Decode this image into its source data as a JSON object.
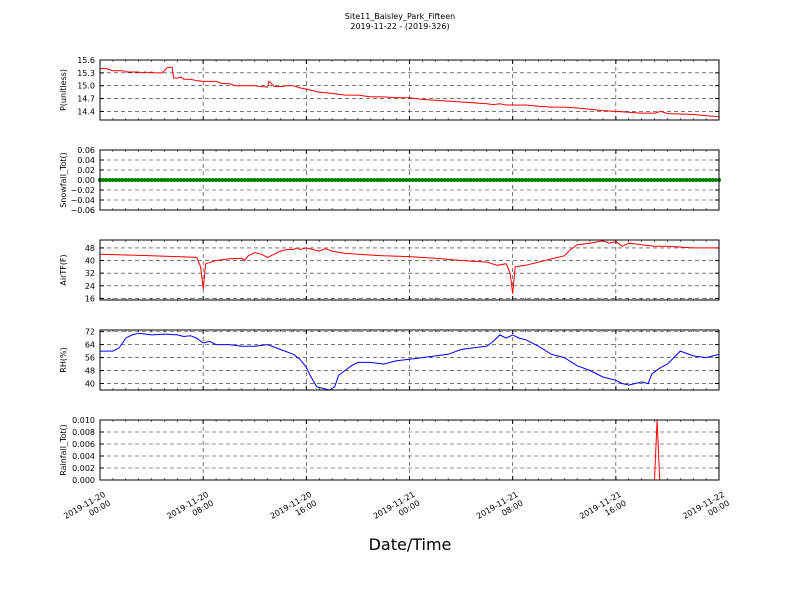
{
  "chart_data": {
    "type": "line",
    "title": "Site11_Baisley_Park_Fifteen",
    "subtitle": "2019-11-22 - (2019-326)",
    "xlabel": "Date/Time",
    "x_ticks": [
      {
        "l1": "2019-11-20",
        "l2": "00:00",
        "h": 0
      },
      {
        "l1": "2019-11-20",
        "l2": "08:00",
        "h": 8
      },
      {
        "l1": "2019-11-20",
        "l2": "16:00",
        "h": 16
      },
      {
        "l1": "2019-11-21",
        "l2": "00:00",
        "h": 24
      },
      {
        "l1": "2019-11-21",
        "l2": "08:00",
        "h": 32
      },
      {
        "l1": "2019-11-21",
        "l2": "16:00",
        "h": 40
      },
      {
        "l1": "2019-11-22",
        "l2": "00:00",
        "h": 48
      }
    ],
    "xlim_hours": [
      0,
      48
    ],
    "panels": [
      {
        "ylabel": "P(unitless)",
        "ylim": [
          14.2,
          15.6
        ],
        "yticks": [
          "15.6",
          "15.3",
          "15.0",
          "14.7",
          "14.4"
        ],
        "ytick_values": [
          15.6,
          15.3,
          15.0,
          14.7,
          14.4
        ],
        "color": "#ff0000",
        "series": [
          [
            0,
            15.4
          ],
          [
            0.5,
            15.4
          ],
          [
            1,
            15.35
          ],
          [
            1.8,
            15.35
          ],
          [
            2,
            15.32
          ],
          [
            3,
            15.32
          ],
          [
            3.2,
            15.3
          ],
          [
            3.5,
            15.32
          ],
          [
            3.8,
            15.3
          ],
          [
            4,
            15.32
          ],
          [
            4.2,
            15.3
          ],
          [
            4.8,
            15.3
          ],
          [
            5,
            15.35
          ],
          [
            5.2,
            15.42
          ],
          [
            5.5,
            15.43
          ],
          [
            5.6,
            15.43
          ],
          [
            5.7,
            15.18
          ],
          [
            6,
            15.18
          ],
          [
            6.3,
            15.2
          ],
          [
            6.5,
            15.15
          ],
          [
            7,
            15.15
          ],
          [
            7.5,
            15.12
          ],
          [
            8,
            15.1
          ],
          [
            9,
            15.1
          ],
          [
            9.5,
            15.05
          ],
          [
            10,
            15.05
          ],
          [
            10.5,
            15.0
          ],
          [
            12,
            15.0
          ],
          [
            12.5,
            14.98
          ],
          [
            13,
            14.97
          ],
          [
            13.1,
            15.1
          ],
          [
            13.3,
            15.05
          ],
          [
            13.5,
            14.98
          ],
          [
            14,
            14.98
          ],
          [
            14.5,
            15.0
          ],
          [
            15,
            15.0
          ],
          [
            15.5,
            14.95
          ],
          [
            16,
            14.92
          ],
          [
            17,
            14.85
          ],
          [
            18,
            14.82
          ],
          [
            19,
            14.78
          ],
          [
            20,
            14.78
          ],
          [
            21,
            14.74
          ],
          [
            22,
            14.74
          ],
          [
            23,
            14.72
          ],
          [
            24,
            14.72
          ],
          [
            25,
            14.68
          ],
          [
            26,
            14.66
          ],
          [
            27,
            14.64
          ],
          [
            28,
            14.62
          ],
          [
            29,
            14.6
          ],
          [
            30,
            14.58
          ],
          [
            30.5,
            14.56
          ],
          [
            31,
            14.58
          ],
          [
            31.5,
            14.55
          ],
          [
            32,
            14.55
          ],
          [
            33,
            14.55
          ],
          [
            34,
            14.52
          ],
          [
            35,
            14.5
          ],
          [
            36,
            14.5
          ],
          [
            37,
            14.48
          ],
          [
            38,
            14.45
          ],
          [
            39,
            14.42
          ],
          [
            40,
            14.4
          ],
          [
            41,
            14.38
          ],
          [
            42,
            14.36
          ],
          [
            43,
            14.36
          ],
          [
            43.5,
            14.4
          ],
          [
            44,
            14.35
          ],
          [
            45,
            14.34
          ],
          [
            46,
            14.33
          ],
          [
            47,
            14.3
          ],
          [
            48,
            14.28
          ]
        ]
      },
      {
        "ylabel": "Snowfall_Tot()",
        "ylim": [
          -0.06,
          0.06
        ],
        "yticks": [
          "0.06",
          "0.04",
          "0.02",
          "0.00",
          "−0.02",
          "−0.04",
          "−0.06"
        ],
        "ytick_values": [
          0.06,
          0.04,
          0.02,
          0.0,
          -0.02,
          -0.04,
          -0.06
        ],
        "color": "#008000",
        "markers": true,
        "series": [
          [
            0,
            0
          ],
          [
            48,
            0
          ]
        ]
      },
      {
        "ylabel": "AirTF(F)",
        "ylim": [
          15,
          53
        ],
        "yticks": [
          "48",
          "40",
          "32",
          "24",
          "16"
        ],
        "ytick_values": [
          48,
          40,
          32,
          24,
          16
        ],
        "color": "#ff0000",
        "series": [
          [
            0,
            44
          ],
          [
            2,
            43.5
          ],
          [
            4,
            43
          ],
          [
            6,
            42.5
          ],
          [
            7.5,
            42
          ],
          [
            7.8,
            36
          ],
          [
            8,
            22
          ],
          [
            8.2,
            38
          ],
          [
            9,
            40
          ],
          [
            10,
            41
          ],
          [
            11,
            41.5
          ],
          [
            11.2,
            40
          ],
          [
            11.5,
            43
          ],
          [
            12,
            45
          ],
          [
            12.5,
            44
          ],
          [
            13,
            42
          ],
          [
            13.5,
            44
          ],
          [
            14,
            46
          ],
          [
            14.5,
            47
          ],
          [
            15,
            47
          ],
          [
            15.3,
            48
          ],
          [
            15.5,
            47
          ],
          [
            16,
            48
          ],
          [
            17,
            46
          ],
          [
            17.5,
            47.5
          ],
          [
            18,
            46
          ],
          [
            19,
            44.5
          ],
          [
            20,
            44
          ],
          [
            22,
            43
          ],
          [
            24,
            42.5
          ],
          [
            26,
            41.5
          ],
          [
            28,
            40
          ],
          [
            30,
            39
          ],
          [
            30.8,
            37
          ],
          [
            31.5,
            38
          ],
          [
            31.8,
            32
          ],
          [
            32,
            19
          ],
          [
            32.2,
            36
          ],
          [
            33,
            37
          ],
          [
            34,
            39
          ],
          [
            35,
            41
          ],
          [
            36,
            43
          ],
          [
            36.5,
            47
          ],
          [
            37,
            50
          ],
          [
            38,
            51
          ],
          [
            39,
            52.5
          ],
          [
            39.5,
            51
          ],
          [
            40,
            52
          ],
          [
            40.5,
            49
          ],
          [
            41,
            51
          ],
          [
            42,
            50
          ],
          [
            43,
            49
          ],
          [
            44,
            49
          ],
          [
            46,
            48
          ],
          [
            48,
            48
          ]
        ]
      },
      {
        "ylabel": "RH(%)",
        "ylim": [
          36,
          73
        ],
        "yticks": [
          "72",
          "64",
          "56",
          "48",
          "40"
        ],
        "ytick_values": [
          72,
          64,
          56,
          48,
          40
        ],
        "color": "#0000ff",
        "series": [
          [
            0,
            60
          ],
          [
            1,
            60
          ],
          [
            1.5,
            62
          ],
          [
            2,
            68
          ],
          [
            2.5,
            70
          ],
          [
            3,
            71
          ],
          [
            4,
            70
          ],
          [
            5,
            70.5
          ],
          [
            6,
            70
          ],
          [
            6.5,
            69
          ],
          [
            7,
            69.5
          ],
          [
            7.5,
            68
          ],
          [
            8,
            65
          ],
          [
            8.5,
            66
          ],
          [
            9,
            64
          ],
          [
            10,
            64
          ],
          [
            11,
            63
          ],
          [
            12,
            63
          ],
          [
            13,
            64
          ],
          [
            14,
            61
          ],
          [
            15,
            58
          ],
          [
            15.5,
            55
          ],
          [
            16,
            50
          ],
          [
            16.3,
            45
          ],
          [
            16.8,
            38
          ],
          [
            17.3,
            37
          ],
          [
            17.8,
            36
          ],
          [
            18.2,
            38
          ],
          [
            18.5,
            45
          ],
          [
            19,
            48
          ],
          [
            19.5,
            51
          ],
          [
            20,
            53
          ],
          [
            21,
            53
          ],
          [
            22,
            52
          ],
          [
            23,
            54
          ],
          [
            24,
            55
          ],
          [
            25,
            56
          ],
          [
            26,
            57
          ],
          [
            27,
            58
          ],
          [
            28,
            61
          ],
          [
            29,
            62
          ],
          [
            30,
            63
          ],
          [
            30.5,
            66
          ],
          [
            31,
            70
          ],
          [
            31.5,
            68
          ],
          [
            32,
            70
          ],
          [
            32.5,
            68
          ],
          [
            33,
            67
          ],
          [
            34,
            63
          ],
          [
            35,
            58
          ],
          [
            36,
            56
          ],
          [
            37,
            51
          ],
          [
            38,
            48
          ],
          [
            39,
            44
          ],
          [
            40,
            42
          ],
          [
            40.5,
            40
          ],
          [
            41,
            39
          ],
          [
            41.5,
            40
          ],
          [
            42,
            41
          ],
          [
            42.5,
            40
          ],
          [
            42.8,
            46
          ],
          [
            43.5,
            50
          ],
          [
            44,
            52
          ],
          [
            45,
            60
          ],
          [
            46,
            57
          ],
          [
            47,
            56
          ],
          [
            48,
            58
          ]
        ]
      },
      {
        "ylabel": "Rainfall_Tot()",
        "ylim": [
          0,
          0.01
        ],
        "yticks": [
          "0.010",
          "0.008",
          "0.006",
          "0.004",
          "0.002",
          "0.000"
        ],
        "ytick_values": [
          0.01,
          0.008,
          0.006,
          0.004,
          0.002,
          0.0
        ],
        "color": "#ff0000",
        "series": [
          [
            0,
            0
          ],
          [
            43,
            0
          ],
          [
            43.2,
            0.01
          ],
          [
            43.4,
            0
          ],
          [
            48,
            0
          ]
        ]
      }
    ],
    "grid": true
  }
}
